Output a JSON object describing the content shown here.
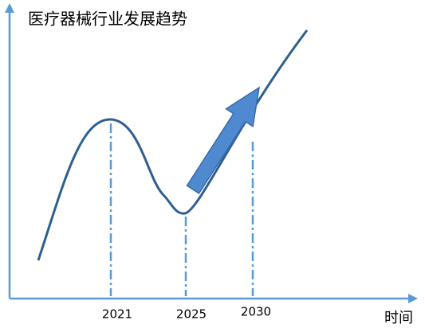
{
  "title": "医疗器械行业发展趋势",
  "x_axis": {
    "label": "时间",
    "markers": [
      "2021",
      "2025",
      "2030"
    ]
  }
}
